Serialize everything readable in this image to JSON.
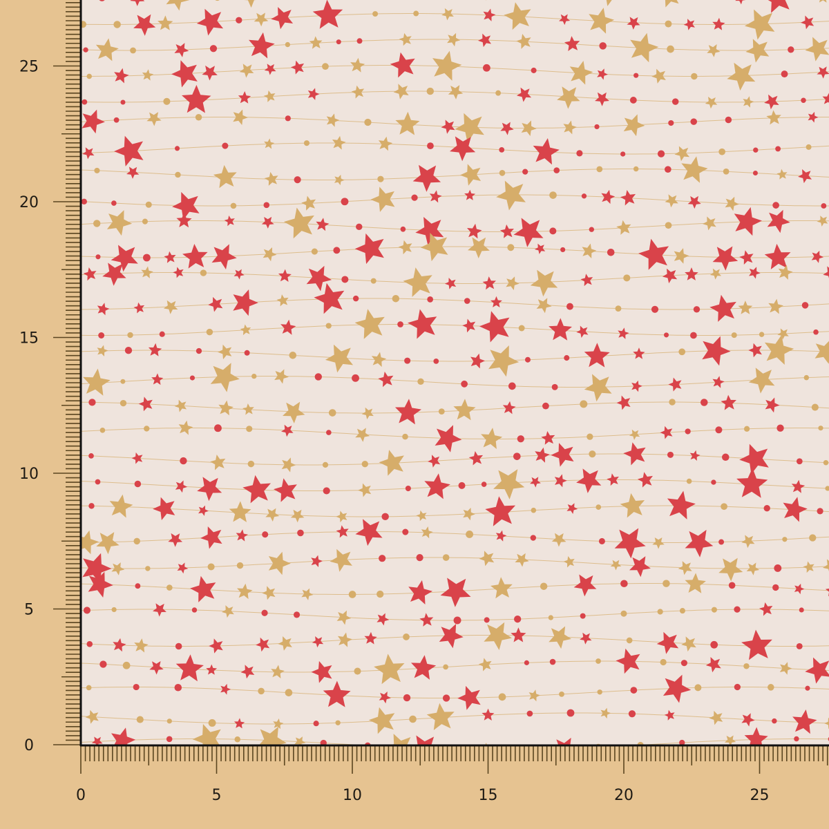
{
  "ruler": {
    "unit_ticks_per_unit": 6,
    "x_labels": [
      "0",
      "5",
      "10",
      "15",
      "20",
      "25"
    ],
    "y_labels": [
      "0",
      "5",
      "10",
      "15",
      "20",
      "25"
    ],
    "tick_color": "#5a4520"
  },
  "fabric": {
    "background_color": "#efe4dd",
    "red_star_color": "#d9434a",
    "gold_star_color": "#d6ad6a",
    "pattern": "red and gold stars with dots on wavy strings"
  },
  "colors": {
    "backdrop": "#e6c391",
    "border": "#111111"
  }
}
